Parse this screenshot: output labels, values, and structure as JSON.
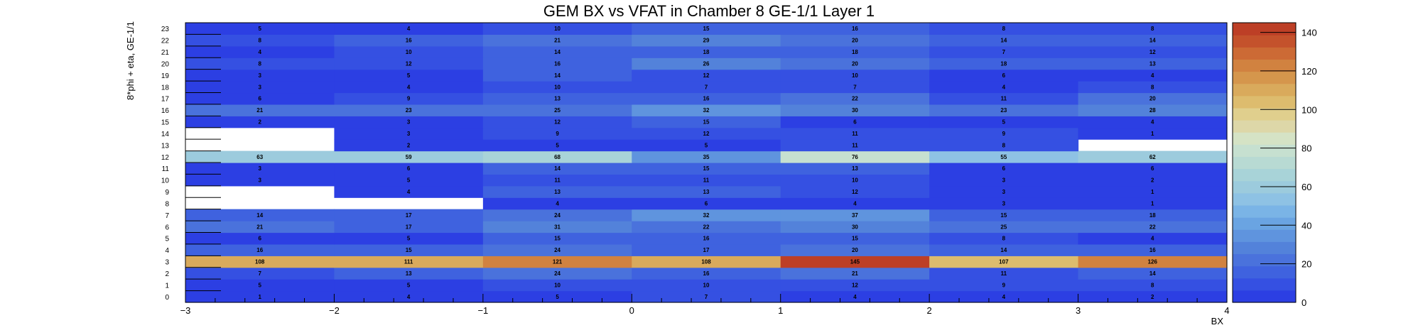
{
  "chart_data": {
    "type": "heatmap",
    "title": "GEM BX vs VFAT in Chamber 8 GE-1/1 Layer 1",
    "xlabel": "BX",
    "ylabel": "8*phi + eta, GE-1/1",
    "xlim": [
      -3,
      4
    ],
    "x_tick_labels": [
      "−3",
      "−2",
      "−1",
      "0",
      "1",
      "2",
      "3",
      "4"
    ],
    "x_bins": [
      -2.5,
      -1.5,
      -0.5,
      0.5,
      1.5,
      2.5,
      3.5
    ],
    "y_categories": [
      "0",
      "1",
      "2",
      "3",
      "4",
      "5",
      "6",
      "7",
      "8",
      "9",
      "10",
      "11",
      "12",
      "13",
      "14",
      "15",
      "16",
      "17",
      "18",
      "19",
      "20",
      "21",
      "22",
      "23"
    ],
    "values": [
      [
        1,
        4,
        5,
        7,
        4,
        4,
        2
      ],
      [
        5,
        5,
        10,
        10,
        12,
        9,
        8
      ],
      [
        7,
        13,
        24,
        16,
        21,
        11,
        14
      ],
      [
        108,
        111,
        121,
        108,
        145,
        107,
        126
      ],
      [
        16,
        15,
        24,
        17,
        20,
        14,
        16
      ],
      [
        6,
        5,
        15,
        16,
        15,
        8,
        4
      ],
      [
        21,
        17,
        31,
        22,
        30,
        25,
        22
      ],
      [
        14,
        17,
        24,
        32,
        37,
        15,
        18
      ],
      [
        null,
        null,
        4,
        6,
        4,
        3,
        1
      ],
      [
        null,
        4,
        13,
        13,
        12,
        3,
        1
      ],
      [
        3,
        5,
        11,
        11,
        10,
        3,
        2
      ],
      [
        3,
        6,
        14,
        15,
        13,
        6,
        6
      ],
      [
        63,
        59,
        68,
        35,
        76,
        55,
        62
      ],
      [
        null,
        2,
        5,
        5,
        11,
        8,
        null
      ],
      [
        null,
        3,
        9,
        12,
        11,
        9,
        1
      ],
      [
        2,
        3,
        12,
        15,
        6,
        5,
        4
      ],
      [
        21,
        23,
        25,
        32,
        30,
        23,
        28
      ],
      [
        6,
        9,
        13,
        16,
        22,
        11,
        20
      ],
      [
        3,
        4,
        10,
        7,
        7,
        4,
        8
      ],
      [
        3,
        5,
        14,
        12,
        10,
        6,
        4
      ],
      [
        8,
        12,
        16,
        26,
        20,
        18,
        13
      ],
      [
        4,
        10,
        14,
        18,
        18,
        7,
        12
      ],
      [
        8,
        16,
        21,
        29,
        20,
        14,
        14
      ],
      [
        5,
        4,
        10,
        15,
        16,
        8,
        8
      ]
    ],
    "zlim": [
      0,
      145
    ],
    "colorbar_ticks": [
      "0",
      "20",
      "40",
      "60",
      "80",
      "100",
      "120",
      "140"
    ],
    "colorbar_tick_values": [
      0,
      20,
      40,
      60,
      80,
      100,
      120,
      140
    ],
    "colors": [
      "#2c3fe3",
      "#3550e2",
      "#3f62df",
      "#4a72dc",
      "#5382da",
      "#5f94de",
      "#6aa4e2",
      "#7ab4e6",
      "#8ec2e4",
      "#9ccbdd",
      "#a8d3d8",
      "#b8dad3",
      "#c6e0d0",
      "#d5e3c5",
      "#ddd7a8",
      "#e0cf8d",
      "#ddbc6e",
      "#d9aa5c",
      "#d5964c",
      "#d18240",
      "#cc6a35",
      "#c4522c",
      "#bd3f26"
    ],
    "legend": "colorbar-right",
    "grid": false
  }
}
